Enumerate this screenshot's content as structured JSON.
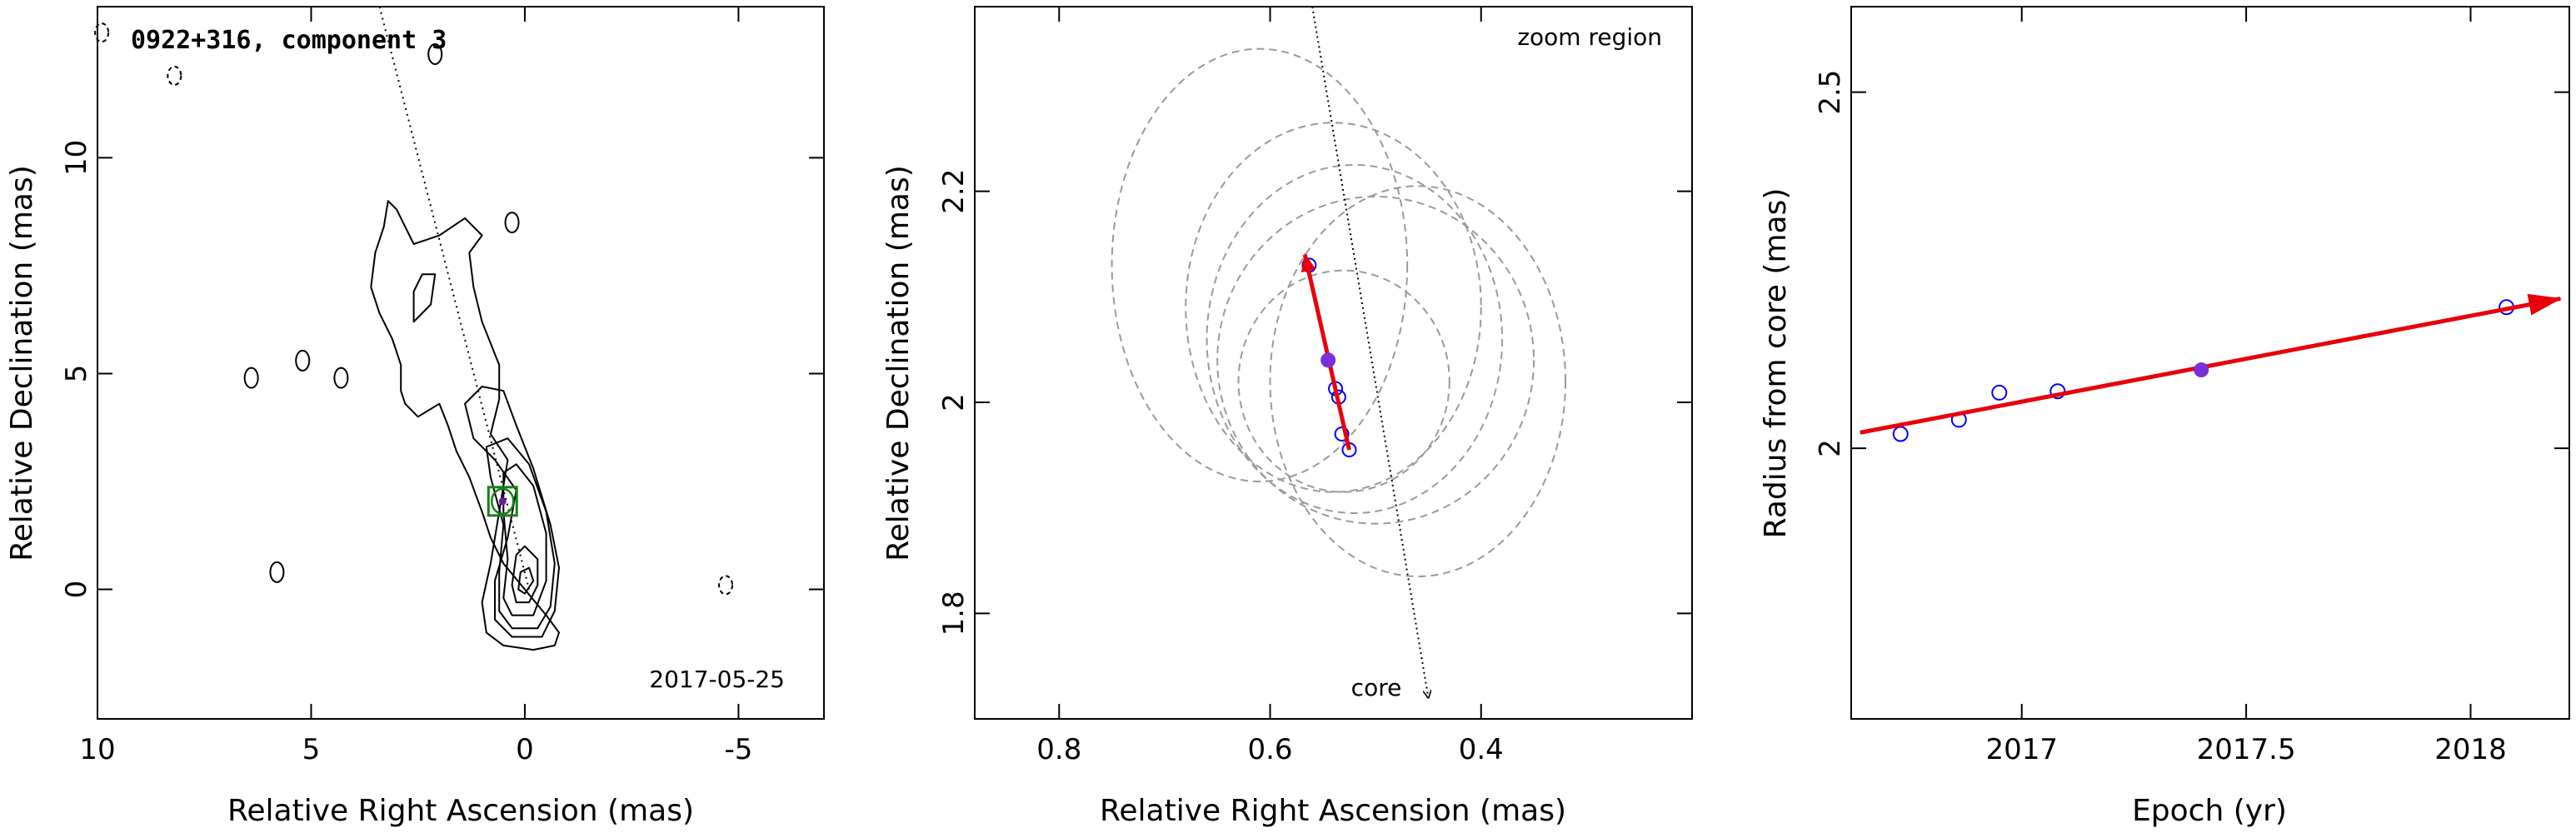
{
  "chart_data": [
    {
      "type": "contour",
      "title": "0922+316, component 3",
      "annotation": "2017-05-25",
      "xlabel": "Relative Right Ascension (mas)",
      "ylabel": "Relative Declination (mas)",
      "xlim": [
        10,
        -7
      ],
      "ylim": [
        -3,
        13.5
      ],
      "xticks": [
        10,
        5,
        0,
        -5
      ],
      "yticks": [
        0,
        5,
        10
      ],
      "component_position": [
        0.52,
        2.04
      ],
      "marker_color": "#1a7f1a",
      "ridge_line": [
        [
          3.4,
          13.5
        ],
        [
          -0.1,
          0
        ]
      ],
      "contours": [
        [
          [
            -0.7,
            -1.3
          ],
          [
            -0.2,
            -1.4
          ],
          [
            0.5,
            -1.3
          ],
          [
            0.9,
            -1.0
          ],
          [
            1.0,
            -0.3
          ],
          [
            0.8,
            0.6
          ],
          [
            0.6,
            1.8
          ],
          [
            0.4,
            3.0
          ],
          [
            0.8,
            3.6
          ],
          [
            0.6,
            4.4
          ],
          [
            0.6,
            5.2
          ],
          [
            1.0,
            6.2
          ],
          [
            1.2,
            7.0
          ],
          [
            1.3,
            7.8
          ],
          [
            1.0,
            8.2
          ],
          [
            1.4,
            8.6
          ],
          [
            2.0,
            8.2
          ],
          [
            2.6,
            8.0
          ],
          [
            3.0,
            8.8
          ],
          [
            3.2,
            9.0
          ],
          [
            3.3,
            8.4
          ],
          [
            3.5,
            7.8
          ],
          [
            3.6,
            7.0
          ],
          [
            3.4,
            6.4
          ],
          [
            3.1,
            5.8
          ],
          [
            2.9,
            5.2
          ],
          [
            2.9,
            4.6
          ],
          [
            2.8,
            4.3
          ],
          [
            2.5,
            4.0
          ],
          [
            2.0,
            4.3
          ],
          [
            1.8,
            3.8
          ],
          [
            1.6,
            3.2
          ],
          [
            1.3,
            2.6
          ],
          [
            1.0,
            1.8
          ],
          [
            0.8,
            1.2
          ],
          [
            0.5,
            0.6
          ],
          [
            0.0,
            0.0
          ],
          [
            -0.5,
            -0.6
          ],
          [
            -0.8,
            -1.0
          ],
          [
            -0.7,
            -1.3
          ]
        ],
        [
          [
            -0.4,
            -1.1
          ],
          [
            0.3,
            -1.1
          ],
          [
            0.7,
            -0.7
          ],
          [
            0.7,
            0.2
          ],
          [
            0.4,
            1.2
          ],
          [
            0.2,
            2.3
          ],
          [
            0.7,
            3.0
          ],
          [
            1.2,
            3.5
          ],
          [
            1.4,
            4.3
          ],
          [
            1.0,
            4.7
          ],
          [
            0.5,
            4.6
          ],
          [
            0.2,
            3.8
          ],
          [
            -0.2,
            2.8
          ],
          [
            -0.6,
            1.5
          ],
          [
            -0.8,
            0.5
          ],
          [
            -0.7,
            -0.5
          ],
          [
            -0.4,
            -1.1
          ]
        ],
        [
          [
            -0.3,
            -0.9
          ],
          [
            0.3,
            -0.9
          ],
          [
            0.6,
            -0.5
          ],
          [
            0.6,
            0.4
          ],
          [
            0.5,
            1.5
          ],
          [
            0.8,
            2.6
          ],
          [
            0.9,
            3.3
          ],
          [
            0.4,
            3.5
          ],
          [
            -0.1,
            2.9
          ],
          [
            -0.5,
            1.8
          ],
          [
            -0.7,
            0.6
          ],
          [
            -0.6,
            -0.4
          ],
          [
            -0.3,
            -0.9
          ]
        ],
        [
          [
            -0.2,
            -0.6
          ],
          [
            0.3,
            -0.6
          ],
          [
            0.5,
            -0.2
          ],
          [
            0.4,
            0.7
          ],
          [
            0.5,
            1.8
          ],
          [
            0.5,
            2.7
          ],
          [
            0.2,
            2.9
          ],
          [
            -0.2,
            2.4
          ],
          [
            -0.5,
            1.3
          ],
          [
            -0.5,
            0.2
          ],
          [
            -0.2,
            -0.6
          ]
        ],
        [
          [
            -0.1,
            -0.3
          ],
          [
            0.2,
            -0.3
          ],
          [
            0.3,
            0.1
          ],
          [
            0.2,
            0.8
          ],
          [
            0.0,
            1.0
          ],
          [
            -0.3,
            0.7
          ],
          [
            -0.3,
            0.1
          ],
          [
            -0.1,
            -0.3
          ]
        ],
        [
          [
            0.0,
            -0.1
          ],
          [
            0.15,
            0.0
          ],
          [
            0.1,
            0.4
          ],
          [
            -0.1,
            0.5
          ],
          [
            -0.2,
            0.2
          ],
          [
            0.0,
            -0.1
          ]
        ],
        [
          [
            2.6,
            6.2
          ],
          [
            2.2,
            6.6
          ],
          [
            2.1,
            7.3
          ],
          [
            2.4,
            7.3
          ],
          [
            2.6,
            6.9
          ],
          [
            2.6,
            6.2
          ]
        ]
      ],
      "islands": [
        [
          2.1,
          12.4
        ],
        [
          0.3,
          8.5
        ],
        [
          5.2,
          5.3
        ],
        [
          6.4,
          4.9
        ],
        [
          4.3,
          4.9
        ],
        [
          5.8,
          0.4
        ]
      ],
      "negative_islands": [
        [
          8.2,
          11.9
        ],
        [
          -4.7,
          0.1
        ],
        [
          9.9,
          12.9
        ]
      ]
    },
    {
      "type": "scatter",
      "annotation": "zoom region",
      "core_label": "core",
      "xlabel": "Relative Right Ascension (mas)",
      "ylabel": "Relative Declination (mas)",
      "xlim": [
        0.88,
        0.2
      ],
      "ylim": [
        1.7,
        2.375
      ],
      "xticks": [
        0.8,
        0.6,
        0.4
      ],
      "yticks": [
        1.8,
        2,
        2.2
      ],
      "points": [
        [
          0.563,
          2.13
        ],
        [
          0.538,
          2.013
        ],
        [
          0.535,
          2.005
        ],
        [
          0.532,
          1.97
        ],
        [
          0.525,
          1.955
        ]
      ],
      "reference_point": [
        0.545,
        2.04
      ],
      "motion_vector": {
        "from": [
          0.525,
          1.955
        ],
        "to": [
          0.567,
          2.14
        ]
      },
      "ridge_line": [
        [
          0.56,
          2.375
        ],
        [
          0.45,
          1.72
        ]
      ],
      "error_ellipses": [
        [
          0.61,
          2.13,
          0.14,
          0.205
        ],
        [
          0.54,
          2.09,
          0.14,
          0.175
        ],
        [
          0.52,
          2.06,
          0.14,
          0.165
        ],
        [
          0.5,
          2.04,
          0.15,
          0.155
        ],
        [
          0.46,
          2.02,
          0.14,
          0.185
        ],
        [
          0.53,
          2.02,
          0.1,
          0.105
        ]
      ],
      "vector_color": "#e8000b",
      "point_color": "#0000ff",
      "reference_color": "#7b2fd6",
      "ellipse_color": "#9a9a9a"
    },
    {
      "type": "scatter",
      "xlabel": "Epoch (yr)",
      "ylabel": "Radius from core (mas)",
      "xlim": [
        2016.62,
        2018.22
      ],
      "ylim": [
        1.62,
        2.62
      ],
      "xticks": [
        2017,
        2017.5,
        2018
      ],
      "xtick_labels": [
        "2017",
        "2017.5",
        "2018"
      ],
      "yticks": [
        2,
        2.5
      ],
      "points": [
        [
          2016.73,
          2.02
        ],
        [
          2016.86,
          2.04
        ],
        [
          2016.95,
          2.078
        ],
        [
          2017.08,
          2.08
        ],
        [
          2018.08,
          2.198
        ]
      ],
      "reference_point": [
        2017.4,
        2.11
      ],
      "fit_line": {
        "from": [
          2016.64,
          2.022
        ],
        "to": [
          2018.2,
          2.21
        ]
      },
      "fit_color": "#e8000b",
      "point_color": "#0000ff",
      "reference_color": "#7b2fd6"
    }
  ]
}
